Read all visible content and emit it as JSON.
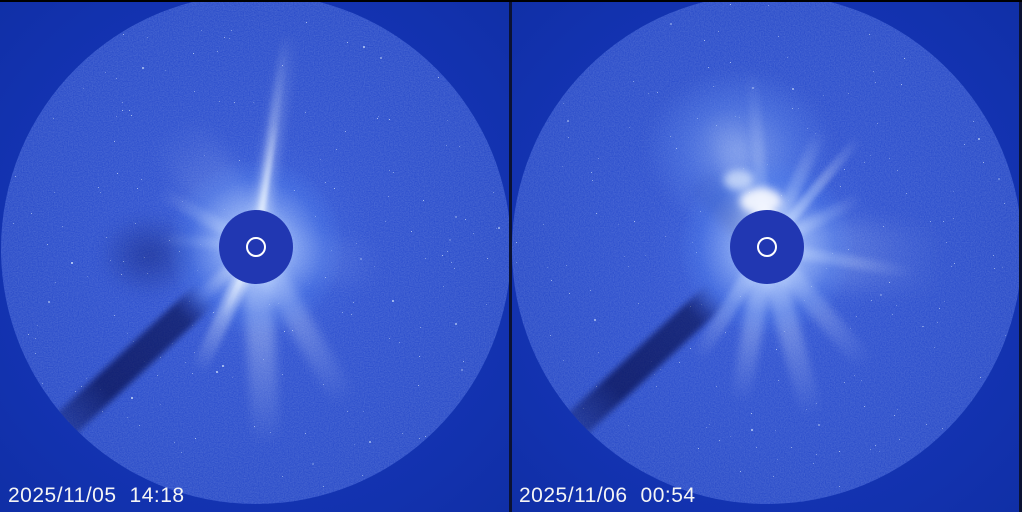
{
  "frames": [
    {
      "position": "left",
      "date": "2025/11/05",
      "time": "14:18"
    },
    {
      "position": "right",
      "date": "2025/11/06",
      "time": "00:54"
    }
  ],
  "colors": {
    "frame_bg": "#1434b4",
    "field": "#2346c9",
    "occulter": "#2137b2",
    "ring": "#ffffff",
    "streamer": "#e8f2ff",
    "pylon": "#040a46",
    "star": "#d8e8ff",
    "text": "#f5f5f5",
    "bar": "#000000",
    "seam": "#0b1233"
  }
}
